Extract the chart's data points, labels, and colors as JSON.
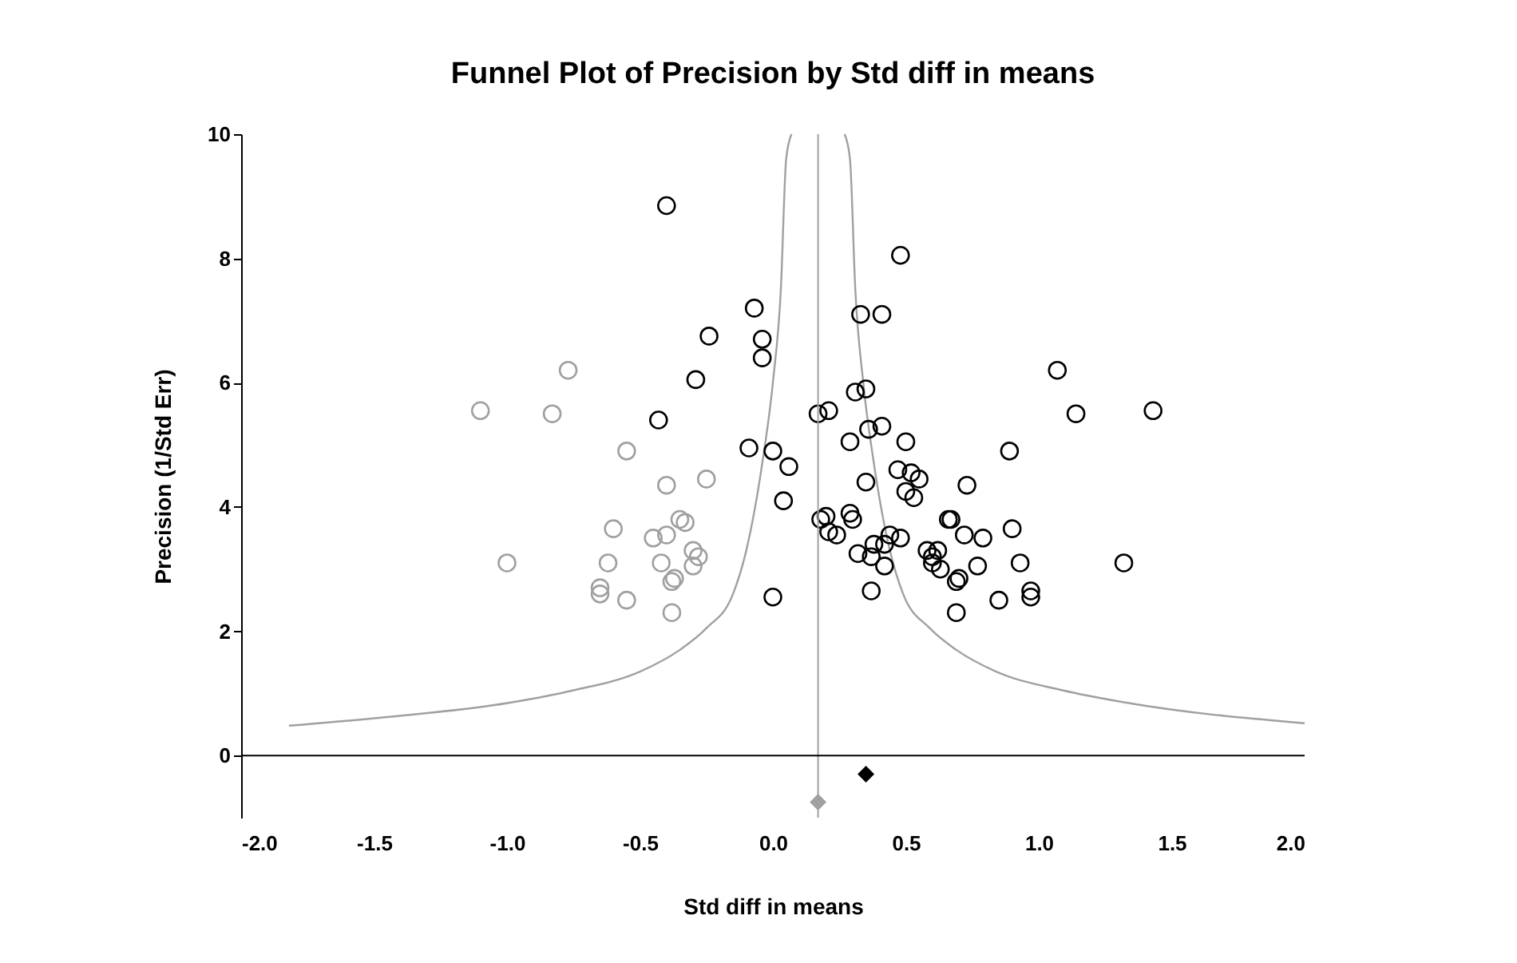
{
  "chart_data": {
    "type": "scatter",
    "title": "Funnel Plot of Precision by Std diff in means",
    "xlabel": "Std diff in means",
    "ylabel": "Precision (1/Std Err)",
    "xlim": [
      -2,
      2
    ],
    "xticks": [
      {
        "value": -2,
        "label": "-2.0"
      },
      {
        "value": -1.5,
        "label": "-1.5"
      },
      {
        "value": -1,
        "label": "-1.0"
      },
      {
        "value": -0.5,
        "label": "-0.5"
      },
      {
        "value": 0,
        "label": "0.0"
      },
      {
        "value": 0.5,
        "label": "0.5"
      },
      {
        "value": 1,
        "label": "1.0"
      },
      {
        "value": 1.5,
        "label": "1.5"
      },
      {
        "value": 2,
        "label": "2.0"
      }
    ],
    "ylim": [
      -1,
      10
    ],
    "yticks": [
      0,
      2,
      4,
      6,
      8,
      10
    ],
    "grid": false,
    "ref_lines": [
      {
        "axis": "x",
        "value": 0.17,
        "color": "#a0a0a0"
      },
      {
        "axis": "y",
        "value": 0,
        "color": "#000000"
      }
    ],
    "series": [
      {
        "type": "line",
        "color": "#a0a0a0",
        "x": [
          -1.82,
          -1.5,
          -0.99,
          -0.75,
          -0.5,
          -0.35,
          -0.25,
          -0.15,
          -0.1,
          -0.04,
          0.0,
          0.03,
          0.05,
          0.07
        ],
        "values": [
          0.48,
          0.6,
          0.85,
          1.05,
          1.35,
          1.7,
          2.05,
          2.6,
          3.3,
          4.7,
          6,
          7.5,
          9.6,
          10
        ]
      },
      {
        "type": "line",
        "color": "#a0a0a0",
        "x": [
          0.27,
          0.29,
          0.31,
          0.34,
          0.38,
          0.44,
          0.49,
          0.59,
          0.69,
          0.84,
          1.09,
          1.33,
          2.0
        ],
        "values": [
          10,
          9.6,
          7.5,
          6,
          4.7,
          3.3,
          2.6,
          2.05,
          1.7,
          1.35,
          1.05,
          0.85,
          0.52
        ]
      },
      {
        "marker": "circle",
        "color": "#a0a0a0",
        "x": [
          -1.1,
          -1.0,
          -0.77,
          -0.83,
          -0.55,
          -0.65,
          -0.65,
          -0.62,
          -0.6,
          -0.55,
          -0.45,
          -0.42,
          -0.4,
          -0.4,
          -0.38,
          -0.37,
          -0.38,
          -0.35,
          -0.33,
          -0.3,
          -0.28,
          -0.3,
          -0.25
        ],
        "values": [
          5.55,
          3.1,
          6.2,
          5.5,
          4.9,
          2.6,
          2.7,
          3.1,
          3.65,
          2.5,
          3.5,
          3.1,
          4.35,
          3.55,
          2.8,
          2.85,
          2.3,
          3.8,
          3.75,
          3.3,
          3.2,
          3.05,
          4.45
        ]
      },
      {
        "marker": "circle",
        "color": "#000000",
        "x": [
          -0.4,
          -0.07,
          -0.04,
          -0.04,
          -0.24,
          -0.29,
          -0.43,
          -0.09,
          0.0,
          0.06,
          0.04,
          0.0,
          0.17,
          0.21,
          0.18,
          0.2,
          0.21,
          0.24,
          0.29,
          0.3,
          0.29,
          0.31,
          0.33,
          0.35,
          0.36,
          0.35,
          0.32,
          0.37,
          0.38,
          0.37,
          0.41,
          0.41,
          0.42,
          0.42,
          0.44,
          0.47,
          0.48,
          0.48,
          0.5,
          0.5,
          0.52,
          0.53,
          0.55,
          0.58,
          0.6,
          0.6,
          0.63,
          0.62,
          0.66,
          0.67,
          0.69,
          0.69,
          0.7,
          0.72,
          0.73,
          0.77,
          0.79,
          0.85,
          0.89,
          0.9,
          0.93,
          0.97,
          0.97,
          1.07,
          1.14,
          1.32,
          1.43
        ],
        "values": [
          8.85,
          7.2,
          6.7,
          6.4,
          6.75,
          6.05,
          5.4,
          4.95,
          4.9,
          4.65,
          4.1,
          2.55,
          5.5,
          5.55,
          3.8,
          3.85,
          3.6,
          3.55,
          3.9,
          3.8,
          5.05,
          5.85,
          7.1,
          5.9,
          5.25,
          4.4,
          3.25,
          3.2,
          3.4,
          2.65,
          5.3,
          7.1,
          3.4,
          3.05,
          3.55,
          4.6,
          8.05,
          3.5,
          4.25,
          5.05,
          4.55,
          4.15,
          4.45,
          3.3,
          3.2,
          3.1,
          3.0,
          3.3,
          3.8,
          3.8,
          2.3,
          2.8,
          2.85,
          3.55,
          4.35,
          3.05,
          3.5,
          2.5,
          4.9,
          3.65,
          3.1,
          2.55,
          2.65,
          6.2,
          5.5,
          3.1,
          5.55
        ]
      },
      {
        "marker": "diamond",
        "color": "#000000",
        "x": [
          0.35
        ],
        "values": [
          -0.3
        ]
      },
      {
        "marker": "diamond",
        "color": "#a0a0a0",
        "x": [
          0.17
        ],
        "values": [
          -0.75
        ]
      }
    ]
  }
}
